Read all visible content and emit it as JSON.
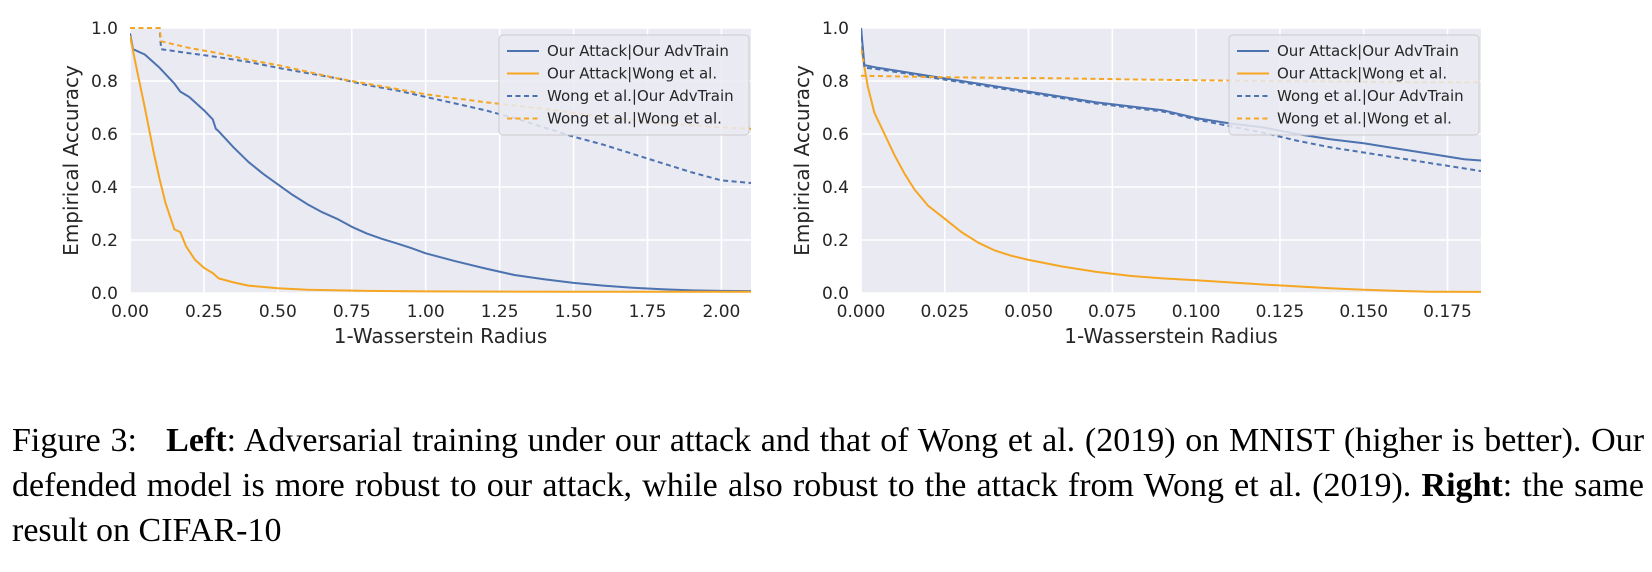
{
  "chart_data": [
    {
      "type": "line",
      "title": "",
      "xlabel": "1-Wasserstein Radius",
      "ylabel": "Empirical Accuracy",
      "xlim": [
        0.0,
        2.1
      ],
      "ylim": [
        0.0,
        1.0
      ],
      "xticks": [
        0.0,
        0.25,
        0.5,
        0.75,
        1.0,
        1.25,
        1.5,
        1.75,
        2.0
      ],
      "xtick_labels": [
        "0.00",
        "0.25",
        "0.50",
        "0.75",
        "1.00",
        "1.25",
        "1.50",
        "1.75",
        "2.00"
      ],
      "yticks": [
        0.0,
        0.2,
        0.4,
        0.6,
        0.8,
        1.0
      ],
      "ytick_labels": [
        "0.0",
        "0.2",
        "0.4",
        "0.6",
        "0.8",
        "1.0"
      ],
      "grid": true,
      "legend_position": "top-right",
      "series": [
        {
          "name": "Our Attack|Our AdvTrain",
          "color": "#4c72b0",
          "dash": "solid",
          "points": [
            [
              0.0,
              0.98
            ],
            [
              0.01,
              0.92
            ],
            [
              0.05,
              0.9
            ],
            [
              0.1,
              0.85
            ],
            [
              0.15,
              0.79
            ],
            [
              0.17,
              0.76
            ],
            [
              0.2,
              0.74
            ],
            [
              0.25,
              0.69
            ],
            [
              0.28,
              0.655
            ],
            [
              0.29,
              0.62
            ],
            [
              0.3,
              0.61
            ],
            [
              0.35,
              0.55
            ],
            [
              0.4,
              0.495
            ],
            [
              0.45,
              0.45
            ],
            [
              0.5,
              0.41
            ],
            [
              0.55,
              0.37
            ],
            [
              0.6,
              0.335
            ],
            [
              0.65,
              0.305
            ],
            [
              0.7,
              0.28
            ],
            [
              0.75,
              0.25
            ],
            [
              0.8,
              0.225
            ],
            [
              0.85,
              0.205
            ],
            [
              0.9,
              0.188
            ],
            [
              0.95,
              0.17
            ],
            [
              1.0,
              0.15
            ],
            [
              1.1,
              0.12
            ],
            [
              1.2,
              0.093
            ],
            [
              1.3,
              0.068
            ],
            [
              1.4,
              0.052
            ],
            [
              1.5,
              0.038
            ],
            [
              1.6,
              0.028
            ],
            [
              1.7,
              0.02
            ],
            [
              1.8,
              0.014
            ],
            [
              1.9,
              0.01
            ],
            [
              2.0,
              0.008
            ],
            [
              2.1,
              0.007
            ]
          ]
        },
        {
          "name": "Our Attack|Wong et al.",
          "color": "#f5a623",
          "dash": "solid",
          "points": [
            [
              0.0,
              0.97
            ],
            [
              0.02,
              0.86
            ],
            [
              0.05,
              0.7
            ],
            [
              0.08,
              0.53
            ],
            [
              0.1,
              0.43
            ],
            [
              0.12,
              0.34
            ],
            [
              0.15,
              0.24
            ],
            [
              0.17,
              0.23
            ],
            [
              0.19,
              0.175
            ],
            [
              0.22,
              0.125
            ],
            [
              0.25,
              0.095
            ],
            [
              0.28,
              0.075
            ],
            [
              0.3,
              0.055
            ],
            [
              0.35,
              0.04
            ],
            [
              0.4,
              0.028
            ],
            [
              0.5,
              0.018
            ],
            [
              0.6,
              0.012
            ],
            [
              0.8,
              0.008
            ],
            [
              1.0,
              0.006
            ],
            [
              1.5,
              0.005
            ],
            [
              2.1,
              0.005
            ]
          ]
        },
        {
          "name": "Wong et al.|Our AdvTrain",
          "color": "#4c72b0",
          "dash": "dashed",
          "points": [
            [
              0.0,
              1.0
            ],
            [
              0.1,
              1.0
            ],
            [
              0.105,
              0.92
            ],
            [
              0.2,
              0.905
            ],
            [
              0.3,
              0.89
            ],
            [
              0.4,
              0.872
            ],
            [
              0.5,
              0.85
            ],
            [
              0.6,
              0.83
            ],
            [
              0.7,
              0.81
            ],
            [
              0.8,
              0.785
            ],
            [
              0.9,
              0.765
            ],
            [
              1.0,
              0.74
            ],
            [
              1.1,
              0.715
            ],
            [
              1.2,
              0.69
            ],
            [
              1.3,
              0.66
            ],
            [
              1.4,
              0.625
            ],
            [
              1.5,
              0.59
            ],
            [
              1.6,
              0.56
            ],
            [
              1.7,
              0.525
            ],
            [
              1.8,
              0.49
            ],
            [
              1.9,
              0.455
            ],
            [
              2.0,
              0.425
            ],
            [
              2.1,
              0.415
            ]
          ]
        },
        {
          "name": "Wong et al.|Wong et al.",
          "color": "#f5a623",
          "dash": "dashed",
          "points": [
            [
              0.0,
              1.0
            ],
            [
              0.1,
              1.0
            ],
            [
              0.105,
              0.95
            ],
            [
              0.2,
              0.925
            ],
            [
              0.3,
              0.905
            ],
            [
              0.4,
              0.88
            ],
            [
              0.5,
              0.86
            ],
            [
              0.6,
              0.835
            ],
            [
              0.7,
              0.81
            ],
            [
              0.8,
              0.79
            ],
            [
              0.9,
              0.77
            ],
            [
              1.0,
              0.75
            ],
            [
              1.2,
              0.72
            ],
            [
              1.4,
              0.695
            ],
            [
              1.6,
              0.665
            ],
            [
              1.8,
              0.64
            ],
            [
              2.0,
              0.625
            ],
            [
              2.1,
              0.62
            ]
          ]
        }
      ]
    },
    {
      "type": "line",
      "title": "",
      "xlabel": "1-Wasserstein Radius",
      "ylabel": "Empirical Accuracy",
      "xlim": [
        0.0,
        0.185
      ],
      "ylim": [
        0.0,
        1.0
      ],
      "xticks": [
        0.0,
        0.025,
        0.05,
        0.075,
        0.1,
        0.125,
        0.15,
        0.175
      ],
      "xtick_labels": [
        "0.000",
        "0.025",
        "0.050",
        "0.075",
        "0.100",
        "0.125",
        "0.150",
        "0.175"
      ],
      "yticks": [
        0.0,
        0.2,
        0.4,
        0.6,
        0.8,
        1.0
      ],
      "ytick_labels": [
        "0.0",
        "0.2",
        "0.4",
        "0.6",
        "0.8",
        "1.0"
      ],
      "grid": true,
      "legend_position": "top-right",
      "series": [
        {
          "name": "Our Attack|Our AdvTrain",
          "color": "#4c72b0",
          "dash": "solid",
          "points": [
            [
              0.0,
              1.0
            ],
            [
              0.001,
              0.86
            ],
            [
              0.005,
              0.85
            ],
            [
              0.01,
              0.84
            ],
            [
              0.02,
              0.82
            ],
            [
              0.03,
              0.8
            ],
            [
              0.04,
              0.78
            ],
            [
              0.05,
              0.76
            ],
            [
              0.06,
              0.74
            ],
            [
              0.07,
              0.72
            ],
            [
              0.08,
              0.705
            ],
            [
              0.09,
              0.69
            ],
            [
              0.1,
              0.66
            ],
            [
              0.11,
              0.64
            ],
            [
              0.12,
              0.625
            ],
            [
              0.13,
              0.6
            ],
            [
              0.14,
              0.58
            ],
            [
              0.15,
              0.565
            ],
            [
              0.16,
              0.545
            ],
            [
              0.17,
              0.525
            ],
            [
              0.18,
              0.505
            ],
            [
              0.185,
              0.5
            ]
          ]
        },
        {
          "name": "Our Attack|Wong et al.",
          "color": "#f5a623",
          "dash": "solid",
          "points": [
            [
              0.0,
              0.93
            ],
            [
              0.002,
              0.78
            ],
            [
              0.004,
              0.68
            ],
            [
              0.007,
              0.6
            ],
            [
              0.01,
              0.52
            ],
            [
              0.013,
              0.45
            ],
            [
              0.016,
              0.39
            ],
            [
              0.02,
              0.33
            ],
            [
              0.025,
              0.28
            ],
            [
              0.03,
              0.23
            ],
            [
              0.035,
              0.19
            ],
            [
              0.04,
              0.16
            ],
            [
              0.045,
              0.14
            ],
            [
              0.05,
              0.125
            ],
            [
              0.06,
              0.1
            ],
            [
              0.07,
              0.08
            ],
            [
              0.08,
              0.065
            ],
            [
              0.09,
              0.055
            ],
            [
              0.1,
              0.048
            ],
            [
              0.11,
              0.04
            ],
            [
              0.12,
              0.032
            ],
            [
              0.13,
              0.025
            ],
            [
              0.14,
              0.018
            ],
            [
              0.15,
              0.012
            ],
            [
              0.16,
              0.008
            ],
            [
              0.17,
              0.005
            ],
            [
              0.185,
              0.004
            ]
          ]
        },
        {
          "name": "Wong et al.|Our AdvTrain",
          "color": "#4c72b0",
          "dash": "dashed",
          "points": [
            [
              0.0,
              1.0
            ],
            [
              0.001,
              0.85
            ],
            [
              0.005,
              0.845
            ],
            [
              0.01,
              0.835
            ],
            [
              0.02,
              0.815
            ],
            [
              0.03,
              0.795
            ],
            [
              0.04,
              0.775
            ],
            [
              0.05,
              0.755
            ],
            [
              0.06,
              0.735
            ],
            [
              0.07,
              0.715
            ],
            [
              0.08,
              0.7
            ],
            [
              0.09,
              0.685
            ],
            [
              0.1,
              0.655
            ],
            [
              0.11,
              0.63
            ],
            [
              0.12,
              0.605
            ],
            [
              0.13,
              0.575
            ],
            [
              0.14,
              0.55
            ],
            [
              0.15,
              0.53
            ],
            [
              0.16,
              0.51
            ],
            [
              0.17,
              0.49
            ],
            [
              0.18,
              0.47
            ],
            [
              0.185,
              0.46
            ]
          ]
        },
        {
          "name": "Wong et al.|Wong et al.",
          "color": "#f5a623",
          "dash": "dashed",
          "points": [
            [
              0.0,
              0.82
            ],
            [
              0.02,
              0.815
            ],
            [
              0.04,
              0.812
            ],
            [
              0.06,
              0.81
            ],
            [
              0.08,
              0.806
            ],
            [
              0.1,
              0.803
            ],
            [
              0.12,
              0.8
            ],
            [
              0.14,
              0.798
            ],
            [
              0.16,
              0.796
            ],
            [
              0.185,
              0.795
            ]
          ]
        }
      ]
    }
  ],
  "caption": {
    "label": "Figure 3:",
    "left_bold": "Left",
    "left_text": ": Adversarial training under our attack and that of Wong et al. (2019) on MNIST (higher is better). Our defended model is more robust to our attack, while also robust to the attack from Wong et al. (2019).",
    "right_bold": "Right",
    "right_text": ": the same result on CIFAR-10"
  }
}
